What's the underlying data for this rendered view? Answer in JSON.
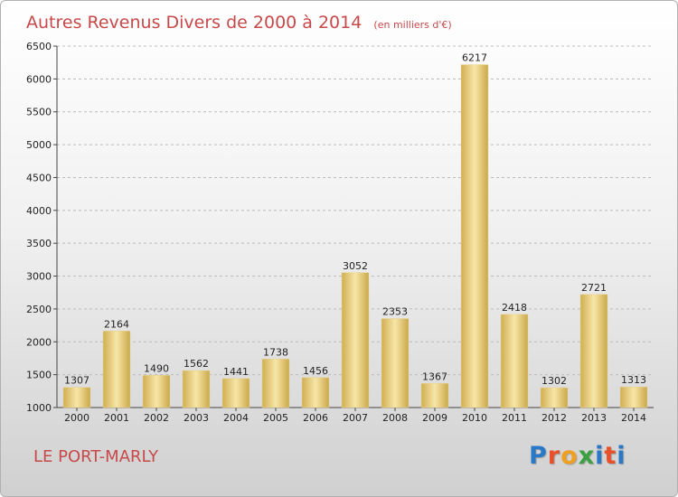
{
  "title": "Autres Revenus Divers de 2000 à 2014",
  "subtitle": "(en milliers d'€)",
  "place": "LE PORT-MARLY",
  "logo": {
    "letters": [
      "P",
      "r",
      "o",
      "x",
      "i",
      "t",
      "i"
    ],
    "colors": [
      "#2a78c8",
      "#e8502a",
      "#f0a020",
      "#3aa040",
      "#2a78c8",
      "#e8502a",
      "#2a78c8"
    ]
  },
  "colors": {
    "bar_light": "#f8e6a8",
    "bar_dark": "#c9a84a",
    "title": "#c8494a",
    "grid": "#bbbbbb"
  },
  "chart_data": {
    "type": "bar",
    "title": "Autres Revenus Divers de 2000 à 2014",
    "subtitle": "(en milliers d'€)",
    "categories": [
      "2000",
      "2001",
      "2002",
      "2003",
      "2004",
      "2005",
      "2006",
      "2007",
      "2008",
      "2009",
      "2010",
      "2011",
      "2012",
      "2013",
      "2014"
    ],
    "values": [
      1307,
      2164,
      1490,
      1562,
      1441,
      1738,
      1456,
      3052,
      2353,
      1367,
      6217,
      2418,
      1302,
      2721,
      1313
    ],
    "ylim": [
      1000,
      6500
    ],
    "yticks": [
      1000,
      1500,
      2000,
      2500,
      3000,
      3500,
      4000,
      4500,
      5000,
      5500,
      6000,
      6500
    ],
    "grid": true,
    "grid_style": "dashed horizontal",
    "data_labels": true
  }
}
